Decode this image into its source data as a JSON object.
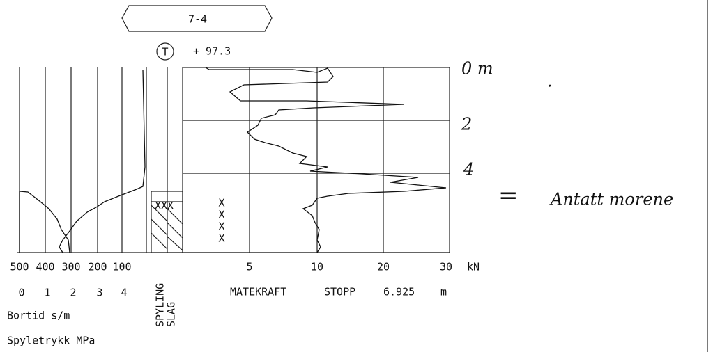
{
  "header": {
    "label": "7-4",
    "symbol": "T",
    "elevation": "+ 97.3"
  },
  "left_axis": {
    "bortid_ticks": [
      "500",
      "400",
      "300",
      "200",
      "100"
    ],
    "spyletrykk_ticks": [
      "0",
      "1",
      "2",
      "3",
      "4"
    ],
    "bortid_label": "Bortid s/m",
    "spyletrykk_label": "Spyletrykk MPa"
  },
  "columns": {
    "spyling": "SPYLING",
    "slag": "SLAG",
    "slag_marks": "XXX"
  },
  "matekraft": {
    "ticks": [
      "5",
      "10",
      "20",
      "30"
    ],
    "unit": "kN",
    "label": "MATEKRAFT",
    "stopp_label": "STOPP",
    "stopp_depth": "6.925",
    "stopp_unit": "m",
    "marks": [
      "X",
      "X",
      "X",
      "X"
    ]
  },
  "annotations": {
    "depth_0": "0 m",
    "depth_2": "2",
    "depth_4": "4",
    "dot": ".",
    "equals": "=",
    "note": "Antatt morene"
  }
}
